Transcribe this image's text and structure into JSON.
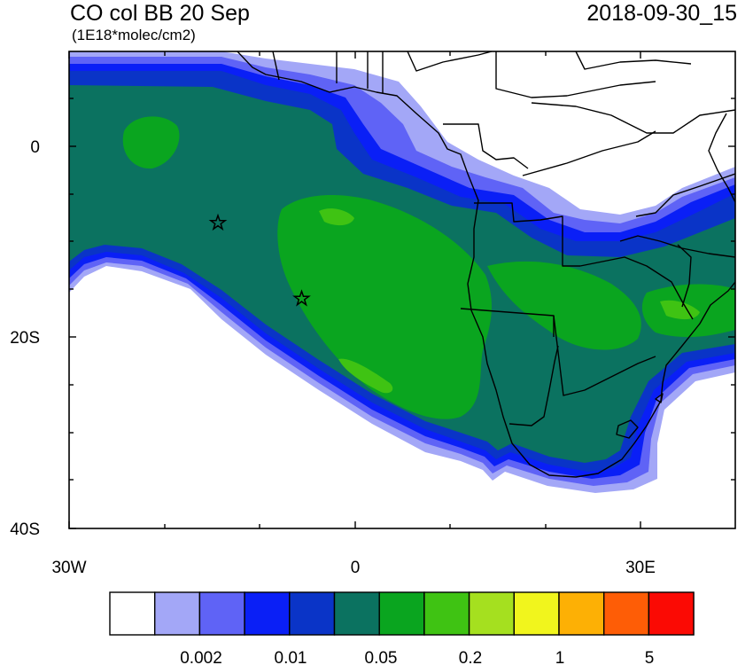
{
  "header": {
    "title": "CO col BB 20 Sep",
    "units": "(1E18*molec/cm2)",
    "valid_time": "2018-09-30_15"
  },
  "map": {
    "lon_range": [
      -30,
      40
    ],
    "lat_range": [
      -40,
      10
    ],
    "x_tick_labels": [
      "30W",
      "0",
      "30E"
    ],
    "y_tick_labels": [
      "0",
      "20S",
      "40S"
    ],
    "markers": [
      {
        "name": "star",
        "lon": -14.3,
        "lat": -7.9
      },
      {
        "name": "star",
        "lon": -5.5,
        "lat": -16.0
      }
    ]
  },
  "colorbar": {
    "colors": [
      "#ffffff",
      "#a3a7f7",
      "#5f63f6",
      "#0a1ff6",
      "#0a34c7",
      "#0b7260",
      "#0aa51f",
      "#3fc313",
      "#a5e01f",
      "#f1f51d",
      "#fdb005",
      "#fe5d06",
      "#fb0a04"
    ],
    "labels": [
      "0.002",
      "0.01",
      "0.05",
      "0.2",
      "1",
      "5"
    ]
  }
}
